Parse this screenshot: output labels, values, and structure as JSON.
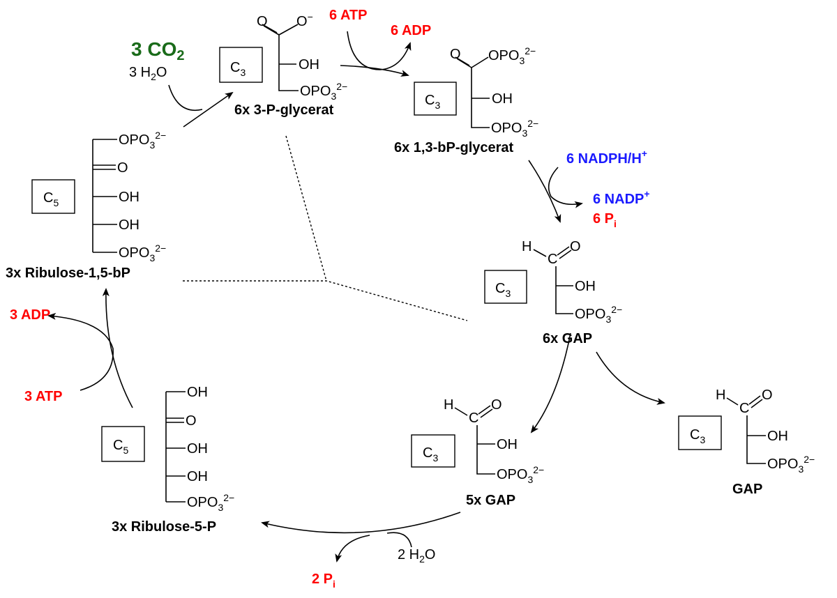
{
  "groups": {
    "opo": "OPO",
    "sub3": "3",
    "charge": "2−",
    "oh": "OH",
    "o": "O",
    "ominus": "O",
    "minus": "−",
    "h": "H",
    "c": "C",
    "sub5": "5"
  },
  "molecules": {
    "pg": {
      "label": "6x  3-P-glycerat"
    },
    "bpg": {
      "label": "6x  1,3-bP-glycerat"
    },
    "gap6": {
      "label": "6x   GAP"
    },
    "gap5": {
      "label": "5x   GAP"
    },
    "gap1": {
      "label": "GAP"
    },
    "rubp": {
      "label": "3x  Ribulose-1,5-bP"
    },
    "ru5p": {
      "label": "3x  Ribulose-5-P"
    }
  },
  "reagents": {
    "co2": {
      "main": "3 CO",
      "sub": "2",
      "color": "#1a6b1a"
    },
    "h2o3": {
      "a": "3 H",
      "sub": "2",
      "b": "O"
    },
    "atp6": "6 ATP",
    "adp6": "6 ADP",
    "nadph": {
      "main": "6 NADPH/H",
      "sup": "+",
      "color": "#1a1aff"
    },
    "nadp": {
      "main": "6 NADP",
      "sup": "+"
    },
    "pi6": {
      "main": "6 P",
      "sub": "i"
    },
    "adp3": "3 ADP",
    "atp3": "3 ATP",
    "h2o2": {
      "a": "2 H",
      "sub": "2",
      "b": "O"
    },
    "pi2": {
      "main": "2 P",
      "sub": "i"
    }
  },
  "colors": {
    "energy": "#ff0000",
    "nadph": "#1a1aff",
    "co2": "#1a6b1a"
  }
}
